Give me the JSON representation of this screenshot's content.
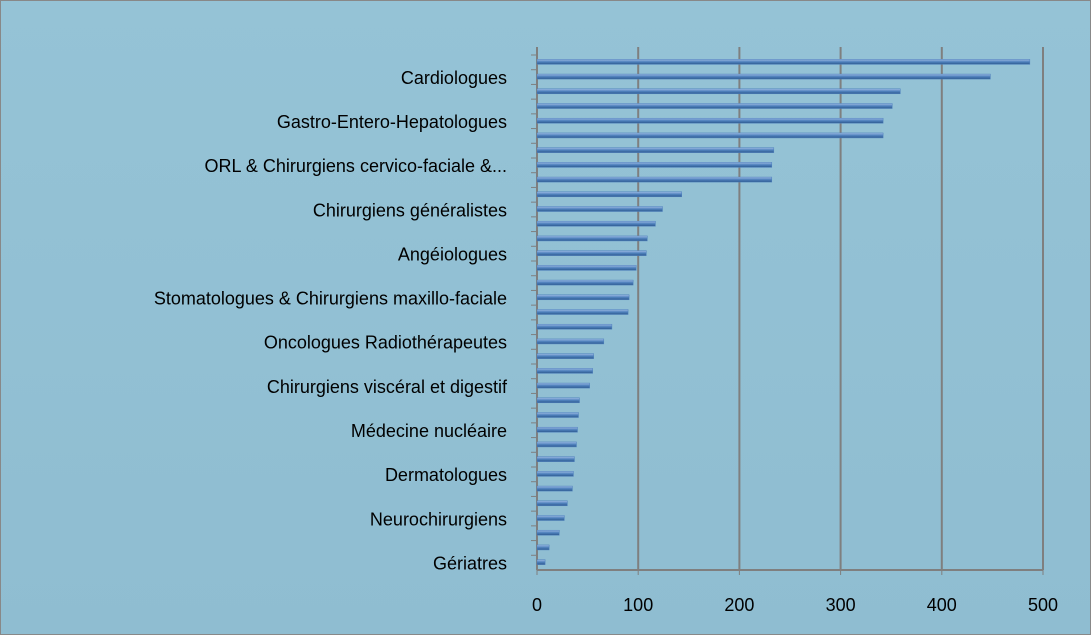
{
  "chart_data": {
    "type": "hbar",
    "categories": [
      null,
      "Cardiologues",
      null,
      null,
      "Gastro-Entero-Hepatologues",
      null,
      null,
      "ORL & Chirurgiens cervico-faciale &...",
      null,
      null,
      "Chirurgiens généralistes",
      null,
      null,
      "Angéiologues",
      null,
      null,
      "Stomatologues & Chirurgiens maxillo-faciale",
      null,
      null,
      "Oncologues Radiothérapeutes",
      null,
      null,
      "Chirurgiens viscéral et digestif",
      null,
      null,
      "Médecine nucléaire",
      null,
      null,
      "Dermatologues",
      null,
      null,
      "Neurochirurgiens",
      null,
      null,
      "Gériatres"
    ],
    "values": [
      487,
      448,
      359,
      351,
      342,
      342,
      234,
      232,
      232,
      143,
      124,
      117,
      109,
      108,
      98,
      95,
      91,
      90,
      74,
      66,
      56,
      55,
      52,
      42,
      41,
      40,
      39,
      37,
      36,
      35,
      30,
      27,
      22,
      12,
      8
    ],
    "color": "#4f81bd",
    "xlim": [
      0,
      500
    ],
    "xticks": [
      0,
      100,
      200,
      300,
      400,
      500
    ],
    "grid": true
  }
}
